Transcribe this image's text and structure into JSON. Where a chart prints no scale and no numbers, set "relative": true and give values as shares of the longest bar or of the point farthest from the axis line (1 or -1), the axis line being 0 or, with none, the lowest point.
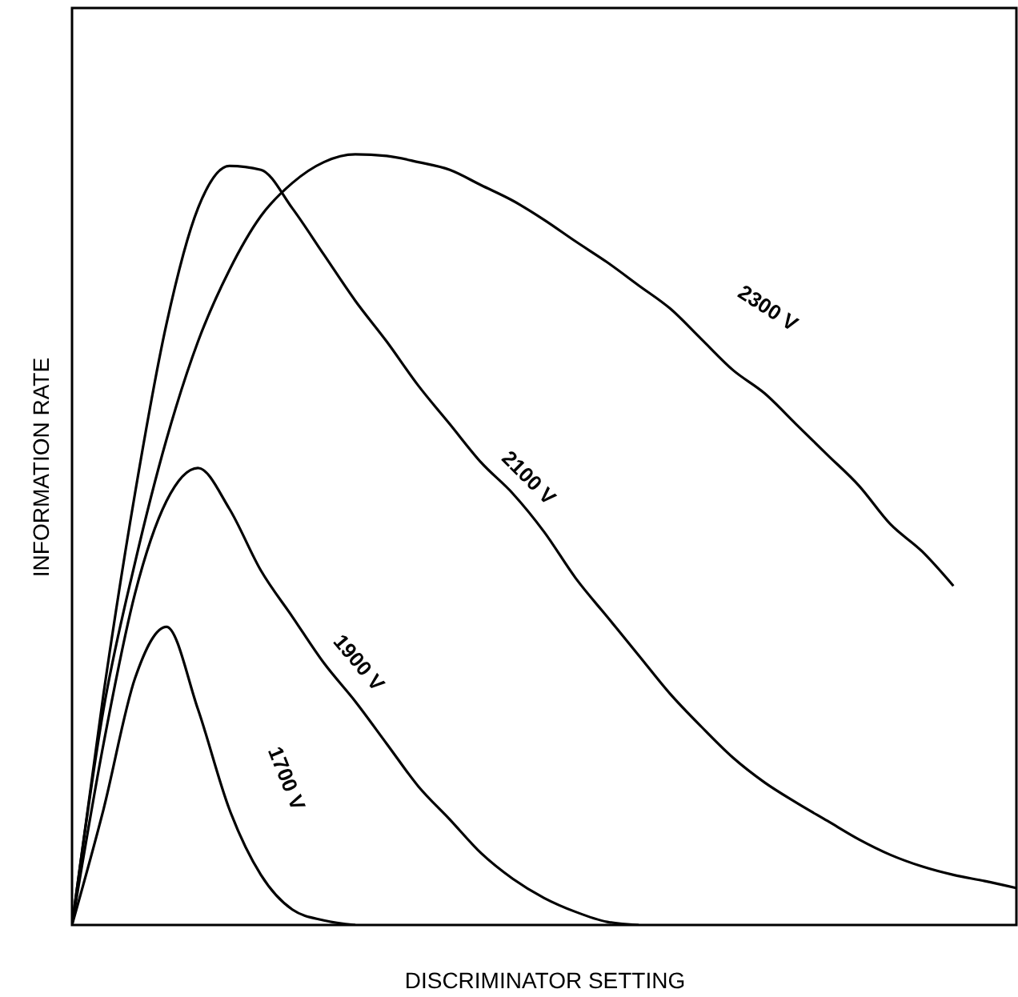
{
  "chart_data": {
    "type": "line",
    "relative": true,
    "xlabel": "DISCRIMINATOR SETTING",
    "ylabel": "INFORMATION RATE",
    "tick_labels": false,
    "grid": false,
    "marker": "none",
    "line_style": "solid",
    "categories": [
      null,
      null,
      null,
      null,
      null,
      null,
      null,
      null,
      null,
      null,
      null,
      null,
      null,
      null,
      null,
      null,
      null,
      null,
      null,
      null,
      null,
      null,
      null,
      null,
      null,
      null,
      null,
      null,
      null,
      null,
      null
    ],
    "series": [
      {
        "name": "1700 V",
        "color": "#000000",
        "values": [
          0,
          0.15,
          0.32,
          0.387,
          0.28,
          0.15,
          0.065,
          0.02,
          0.006,
          0,
          null,
          null,
          null,
          null,
          null,
          null,
          null,
          null,
          null,
          null,
          null,
          null,
          null,
          null,
          null,
          null,
          null,
          null,
          null,
          null,
          null
        ]
      },
      {
        "name": "1900 V",
        "color": "#000000",
        "values": [
          0,
          0.235,
          0.43,
          0.55,
          0.593,
          0.54,
          0.46,
          0.4,
          0.34,
          0.29,
          0.235,
          0.18,
          0.137,
          0.093,
          0.06,
          0.035,
          0.017,
          0.004,
          0,
          null,
          null,
          null,
          null,
          null,
          null,
          null,
          null,
          null,
          null,
          null,
          null
        ]
      },
      {
        "name": "2100 V",
        "color": "#000000",
        "values": [
          0,
          0.3,
          0.56,
          0.78,
          0.93,
          0.985,
          0.98,
          0.93,
          0.87,
          0.81,
          0.757,
          0.7,
          0.65,
          0.6,
          0.56,
          0.51,
          0.45,
          0.4,
          0.35,
          0.3,
          0.257,
          0.217,
          0.185,
          0.159,
          0.135,
          0.111,
          0.091,
          0.076,
          0.065,
          0.057,
          0.048
        ]
      },
      {
        "name": "2300 V",
        "color": "#000000",
        "values": [
          0,
          0.28,
          0.47,
          0.63,
          0.757,
          0.85,
          0.92,
          0.963,
          0.99,
          1,
          0.998,
          0.99,
          0.98,
          0.96,
          0.94,
          0.915,
          0.887,
          0.86,
          0.83,
          0.8,
          0.76,
          0.72,
          0.69,
          0.65,
          0.61,
          0.57,
          0.52,
          0.485,
          0.44,
          null,
          null
        ]
      }
    ]
  }
}
